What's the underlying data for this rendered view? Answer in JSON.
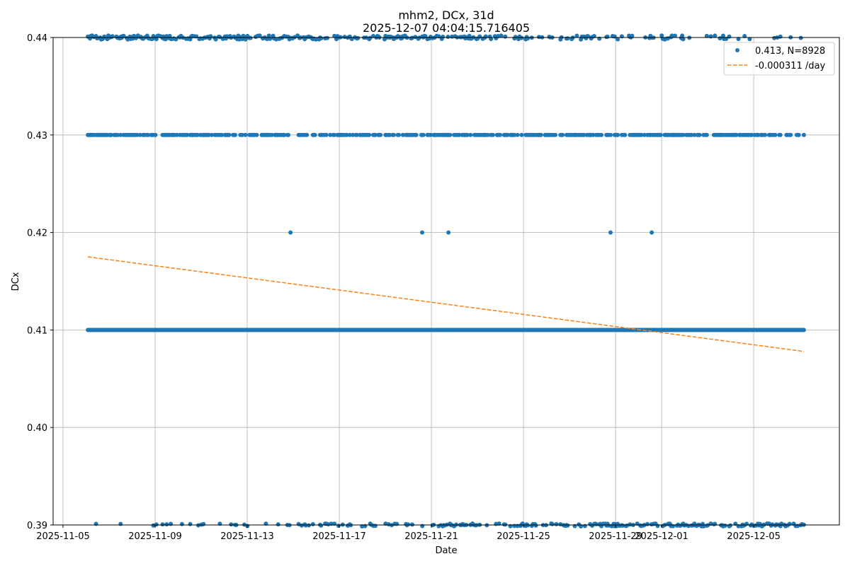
{
  "chart_data": {
    "type": "scatter",
    "title": "mhm2, DCx, 31d",
    "subtitle": "2025-12-07 04:04:15.716405",
    "xlabel": "Date",
    "ylabel": "DCx",
    "xlim_days_from_2025_11_05": [
      -0.43,
      33.72
    ],
    "ylim": [
      0.39,
      0.44
    ],
    "grid": true,
    "x_ticks": [
      "2025-11-05",
      "2025-11-09",
      "2025-11-13",
      "2025-11-17",
      "2025-11-21",
      "2025-11-25",
      "2025-11-29",
      "2025-12-01",
      "2025-12-05"
    ],
    "x_tick_days": [
      0,
      4,
      8,
      12,
      16,
      20,
      24,
      26,
      30
    ],
    "y_ticks": [
      "0.39",
      "0.40",
      "0.41",
      "0.42",
      "0.43",
      "0.44"
    ],
    "y_tick_values": [
      0.39,
      0.4,
      0.41,
      0.42,
      0.43,
      0.44
    ],
    "legend_placement": "top-right",
    "series": [
      {
        "name": "0.413, N=8928",
        "kind": "points",
        "color": "#1f77b4",
        "date_range_days": [
          1.08,
          32.18
        ],
        "levels": [
          {
            "value": 0.41,
            "density": 1.0
          },
          {
            "value": 0.43,
            "density": 0.55
          },
          {
            "value": 0.44,
            "density_start": 0.8,
            "density_end": 0.12
          },
          {
            "value": 0.39,
            "density_start": 0.05,
            "density_end": 0.6
          }
        ],
        "outliers": [
          {
            "day": 9.88,
            "value": 0.42
          },
          {
            "day": 15.6,
            "value": 0.42
          },
          {
            "day": 16.74,
            "value": 0.42
          },
          {
            "day": 23.78,
            "value": 0.42
          },
          {
            "day": 25.57,
            "value": 0.42
          }
        ]
      },
      {
        "name": "-0.000311 /day",
        "kind": "trend",
        "color": "#ff7f0e",
        "slope_per_day": -0.000311,
        "start": {
          "day": 1.08,
          "value": 0.4175
        },
        "end": {
          "day": 32.18,
          "value": 0.4078
        }
      }
    ]
  }
}
